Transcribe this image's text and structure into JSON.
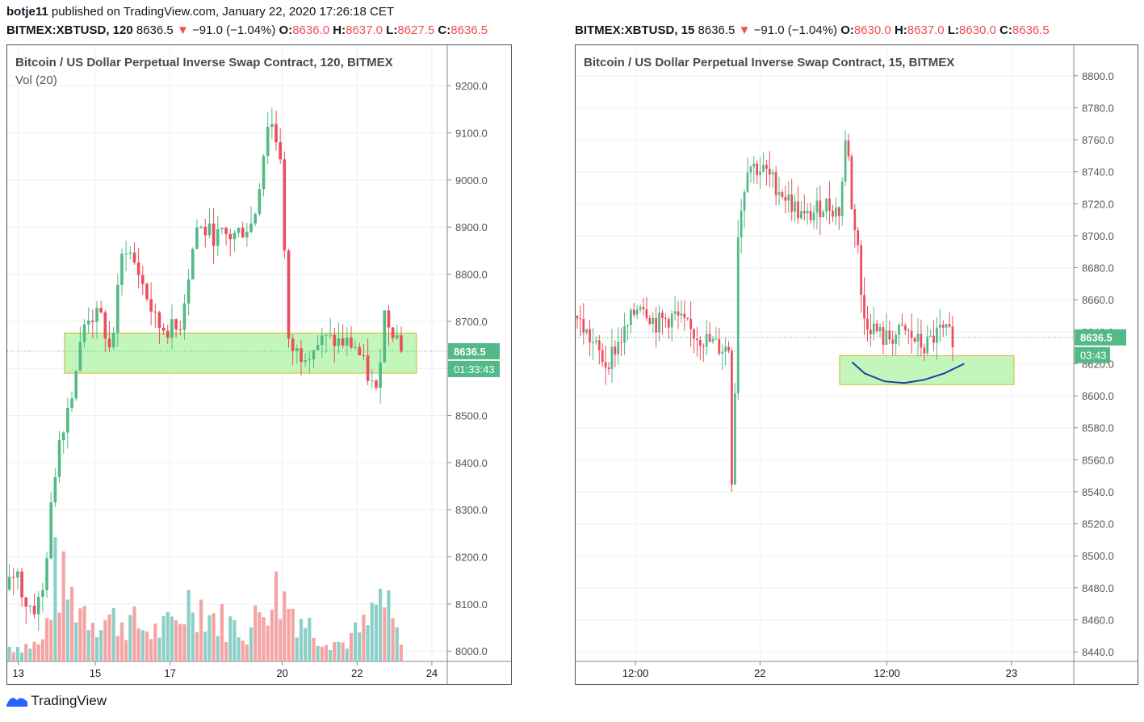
{
  "publish": {
    "user": "botje11",
    "text": "published on TradingView.com, January 22, 2020 17:26:18 CET"
  },
  "left": {
    "quote": {
      "symbol": "BITMEX:XBTUSD, 120",
      "last": "8636.5",
      "arrow": "▼",
      "change": "−91.0 (−1.04%)",
      "o_label": "O:",
      "o": "8636.0",
      "h_label": "H:",
      "h": "8637.0",
      "l_label": "L:",
      "l": "8627.5",
      "c_label": "C:",
      "c": "8636.5"
    },
    "title": "Bitcoin / US Dollar Perpetual Inverse Swap Contract, 120, BITMEX",
    "indicator": "Vol (20)",
    "price_tag": "8636.5",
    "time_tag": "01:33:43"
  },
  "right": {
    "quote": {
      "symbol": "BITMEX:XBTUSD, 15",
      "last": "8636.5",
      "arrow": "▼",
      "change": "−91.0 (−1.04%)",
      "o_label": "O:",
      "o": "8630.0",
      "h_label": "H:",
      "h": "8637.0",
      "l_label": "L:",
      "l": "8630.0",
      "c_label": "C:",
      "c": "8636.5"
    },
    "title": "Bitcoin / US Dollar Perpetual Inverse Swap Contract, 15, BITMEX",
    "price_tag": "8636.5",
    "time_tag": "03:43"
  },
  "footer": {
    "brand": "TradingView"
  },
  "colors": {
    "up": "#53b987",
    "down": "#eb4d5c",
    "vol_up": "#8ccfc6",
    "vol_down": "#f5a3a3",
    "zone_fill": "#b8f5ae",
    "zone_border": "#d6b42a",
    "tag_bg": "#53b987",
    "curve": "#1a3fa8"
  },
  "chart_data": [
    {
      "type": "candlestick",
      "title": "Bitcoin / US Dollar Perpetual Inverse Swap Contract, 120, BITMEX",
      "y_ticks": [
        "9200.0",
        "9100.0",
        "9000.0",
        "8900.0",
        "8800.0",
        "8700.0",
        "8600.0",
        "8500.0",
        "8400.0",
        "8300.0",
        "8200.0",
        "8100.0",
        "8000.0"
      ],
      "x_ticks": [
        "13",
        "15",
        "17",
        "20",
        "22",
        "24"
      ],
      "ylim": [
        7985,
        9262
      ],
      "last_price": 8636.5,
      "zone": {
        "y_low": 8590,
        "y_high": 8675,
        "x_from": 0.13,
        "x_to": 0.93
      },
      "waypoints": [
        [
          0,
          8130
        ],
        [
          0.02,
          8175
        ],
        [
          0.04,
          8105
        ],
        [
          0.06,
          8090
        ],
        [
          0.075,
          8110
        ],
        [
          0.08,
          8120
        ],
        [
          0.115,
          8440
        ],
        [
          0.145,
          8545
        ],
        [
          0.18,
          8715
        ],
        [
          0.215,
          8705
        ],
        [
          0.235,
          8630
        ],
        [
          0.265,
          8870
        ],
        [
          0.3,
          8800
        ],
        [
          0.34,
          8690
        ],
        [
          0.39,
          8680
        ],
        [
          0.43,
          8900
        ],
        [
          0.475,
          8880
        ],
        [
          0.51,
          8880
        ],
        [
          0.56,
          8910
        ],
        [
          0.595,
          9140
        ],
        [
          0.625,
          9040
        ],
        [
          0.635,
          8650
        ],
        [
          0.665,
          8630
        ],
        [
          0.72,
          8660
        ],
        [
          0.79,
          8650
        ],
        [
          0.84,
          8540
        ],
        [
          0.855,
          8720
        ],
        [
          0.88,
          8680
        ],
        [
          0.9,
          8636.5
        ]
      ],
      "volume_profile": [
        [
          0,
          0.1
        ],
        [
          0.08,
          0.12
        ],
        [
          0.11,
          0.6
        ],
        [
          0.14,
          0.45
        ],
        [
          0.2,
          0.3
        ],
        [
          0.27,
          0.28
        ],
        [
          0.33,
          0.2
        ],
        [
          0.38,
          0.25
        ],
        [
          0.42,
          0.45
        ],
        [
          0.47,
          0.3
        ],
        [
          0.55,
          0.2
        ],
        [
          0.6,
          0.5
        ],
        [
          0.64,
          0.4
        ],
        [
          0.7,
          0.2
        ],
        [
          0.76,
          0.12
        ],
        [
          0.82,
          0.25
        ],
        [
          0.85,
          0.45
        ],
        [
          0.9,
          0.08
        ]
      ]
    },
    {
      "type": "candlestick",
      "title": "Bitcoin / US Dollar Perpetual Inverse Swap Contract, 15, BITMEX",
      "y_ticks": [
        "8800.0",
        "8780.0",
        "8760.0",
        "8740.0",
        "8720.0",
        "8700.0",
        "8680.0",
        "8660.0",
        "8640.0",
        "8620.0",
        "8600.0",
        "8580.0",
        "8560.0",
        "8540.0",
        "8520.0",
        "8500.0",
        "8480.0",
        "8460.0",
        "8440.0"
      ],
      "x_ticks": [
        "12:00",
        "22",
        "12:00",
        "23"
      ],
      "ylim": [
        8436,
        8812
      ],
      "last_price": 8636.5,
      "zone": {
        "y_low": 8607,
        "y_high": 8625,
        "x_from": 0.53,
        "x_to": 0.88
      },
      "waypoints": [
        [
          0,
          8650
        ],
        [
          0.03,
          8635
        ],
        [
          0.06,
          8620
        ],
        [
          0.1,
          8640
        ],
        [
          0.13,
          8660
        ],
        [
          0.16,
          8645
        ],
        [
          0.2,
          8650
        ],
        [
          0.23,
          8640
        ],
        [
          0.26,
          8635
        ],
        [
          0.29,
          8630
        ],
        [
          0.31,
          8630
        ],
        [
          0.315,
          8515
        ],
        [
          0.325,
          8700
        ],
        [
          0.345,
          8745
        ],
        [
          0.38,
          8740
        ],
        [
          0.42,
          8725
        ],
        [
          0.46,
          8710
        ],
        [
          0.5,
          8720
        ],
        [
          0.53,
          8715
        ],
        [
          0.545,
          8770
        ],
        [
          0.555,
          8710
        ],
        [
          0.565,
          8705
        ],
        [
          0.575,
          8650
        ],
        [
          0.62,
          8635
        ],
        [
          0.66,
          8640
        ],
        [
          0.7,
          8630
        ],
        [
          0.73,
          8640
        ],
        [
          0.76,
          8636.5
        ]
      ],
      "curve": [
        [
          0.555,
          8621
        ],
        [
          0.58,
          8614
        ],
        [
          0.62,
          8609
        ],
        [
          0.66,
          8608
        ],
        [
          0.7,
          8610
        ],
        [
          0.74,
          8614
        ],
        [
          0.78,
          8620
        ]
      ]
    }
  ]
}
